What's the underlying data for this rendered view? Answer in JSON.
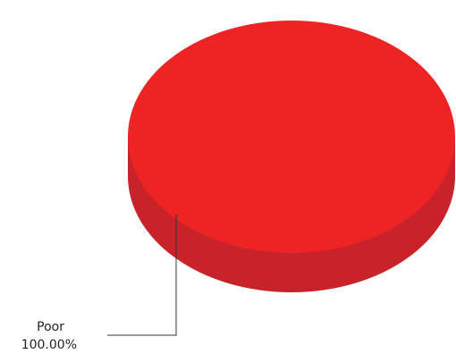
{
  "chart_data": {
    "type": "pie",
    "style": "3d",
    "slices": [
      {
        "label": "Poor",
        "value": 100.0,
        "display": "100.00%",
        "color": "#ee2424",
        "side_color": "#c8222a"
      }
    ],
    "legend": "none"
  }
}
